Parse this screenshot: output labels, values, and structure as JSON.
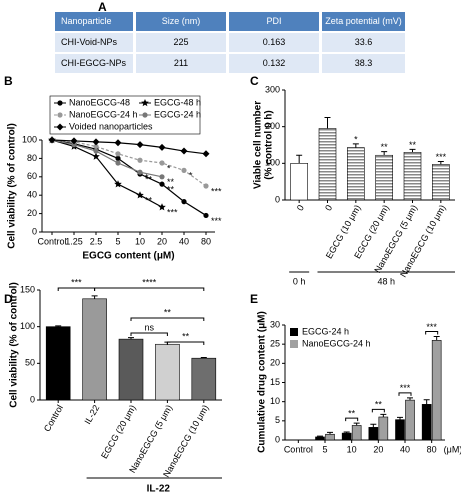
{
  "table": {
    "panel": "A",
    "header": [
      "Nanoparticle",
      "Size (nm)",
      "PDI",
      "Zeta potential (mV)"
    ],
    "rows": [
      [
        "CHI-Void-NPs",
        225,
        0.163,
        33.6
      ],
      [
        "CHI-EGCG-NPs",
        211,
        0.132,
        38.3
      ]
    ]
  },
  "chart_data": [
    {
      "panel": "B",
      "type": "line",
      "x_label": "EGCG content (μM)",
      "y_label": "Cell viability (% of control)",
      "categories": [
        "Control",
        "1.25",
        "2.5",
        "5",
        "10",
        "20",
        "40",
        "80"
      ],
      "ylim": [
        0,
        100
      ],
      "yticks": [
        0,
        20,
        40,
        60,
        80,
        100
      ],
      "series": [
        {
          "name": "NanoEGCG-48",
          "color": "#000000",
          "marker": "circle",
          "dashed": false,
          "values": [
            100,
            96,
            90,
            80,
            63,
            52,
            33,
            18
          ],
          "labels": [
            null,
            null,
            null,
            null,
            "**",
            "**",
            null,
            "***"
          ]
        },
        {
          "name": "EGCG-48 h",
          "color": "#000000",
          "marker": "star",
          "dashed": false,
          "values": [
            100,
            93,
            82,
            52,
            40,
            27,
            null,
            null
          ],
          "labels": [
            null,
            null,
            null,
            null,
            "**",
            "***",
            null,
            null
          ]
        },
        {
          "name": "NanoEGCG-24 h",
          "color": "#999999",
          "marker": "circle",
          "dashed": true,
          "values": [
            100,
            98,
            93,
            85,
            78,
            75,
            67,
            50
          ],
          "labels": [
            null,
            null,
            null,
            null,
            null,
            "*",
            "*",
            "***"
          ]
        },
        {
          "name": "EGCG-24 h",
          "color": "#777777",
          "marker": "circle",
          "dashed": false,
          "values": [
            100,
            95,
            88,
            75,
            65,
            60,
            null,
            null
          ],
          "labels": [
            null,
            null,
            null,
            null,
            "*",
            "**",
            null,
            null
          ]
        },
        {
          "name": "Voided nanoparticles",
          "color": "#000000",
          "marker": "diamond",
          "dashed": false,
          "values": [
            100,
            99,
            98,
            97,
            95,
            92,
            88,
            85
          ]
        }
      ]
    },
    {
      "panel": "C",
      "type": "bar",
      "y_label": [
        "Viable cell number",
        "(% control 0 h)"
      ],
      "categories": [
        "0",
        "0",
        "EGCG (10 μm)",
        "EGCG (20 μm)",
        "NanoEGCG (5 μm)",
        "NanoEGCG (10 μm)"
      ],
      "values": [
        100,
        195,
        143,
        122,
        130,
        97
      ],
      "errors": [
        22,
        30,
        10,
        10,
        8,
        8
      ],
      "labels": [
        null,
        null,
        "*",
        "**",
        "**",
        "***"
      ],
      "colors": [
        "#ffffff",
        "#888888",
        "#888888",
        "#888888",
        "#888888",
        "#888888"
      ],
      "hatch": true,
      "groups": [
        "0 h",
        "48 h"
      ],
      "ylim": [
        0,
        300
      ],
      "yticks": [
        0,
        100,
        200,
        300
      ]
    },
    {
      "panel": "D",
      "type": "bar",
      "y_label": "Cell viability (% of control)",
      "categories": [
        "Control",
        "IL-22",
        "EGCG (20 μm)",
        "NanoEGCG (5 μm)",
        "NanoEGCG (10 μm)"
      ],
      "values": [
        100,
        138,
        83,
        76,
        57
      ],
      "errors": [
        1,
        4,
        2,
        3,
        1
      ],
      "colors": [
        "#000000",
        "#9a9a9a",
        "#5a5a5a",
        "#d0d0d0",
        "#6e6e6e"
      ],
      "brackets": [
        "***",
        "****",
        "ns",
        "**",
        "**"
      ],
      "group": "IL-22",
      "ylim": [
        0,
        150
      ],
      "yticks": [
        0,
        50,
        100,
        150
      ]
    },
    {
      "panel": "E",
      "type": "bar",
      "y_label": "Cumulative drug content (μM)",
      "categories": [
        "Control",
        "5",
        "10",
        "20",
        "40",
        "80"
      ],
      "x_unit": "(μM)",
      "series": [
        {
          "name": "EGCG-24 h",
          "color": "#000000",
          "values": [
            0,
            0.8,
            1.8,
            3.3,
            5.3,
            9.3
          ],
          "errors": [
            0,
            0.2,
            0.3,
            0.8,
            0.6,
            1.2
          ]
        },
        {
          "name": "NanoEGCG-24 h",
          "color": "#a0a0a0",
          "values": [
            0,
            1.5,
            3.8,
            6,
            10.4,
            26
          ],
          "errors": [
            0,
            0.5,
            0.6,
            0.7,
            0.6,
            1.0
          ]
        }
      ],
      "labels": [
        null,
        null,
        "**",
        "**",
        "***",
        "***"
      ],
      "ylim": [
        0,
        30
      ],
      "yticks": [
        0,
        5,
        10,
        15,
        20,
        25,
        30
      ]
    }
  ]
}
